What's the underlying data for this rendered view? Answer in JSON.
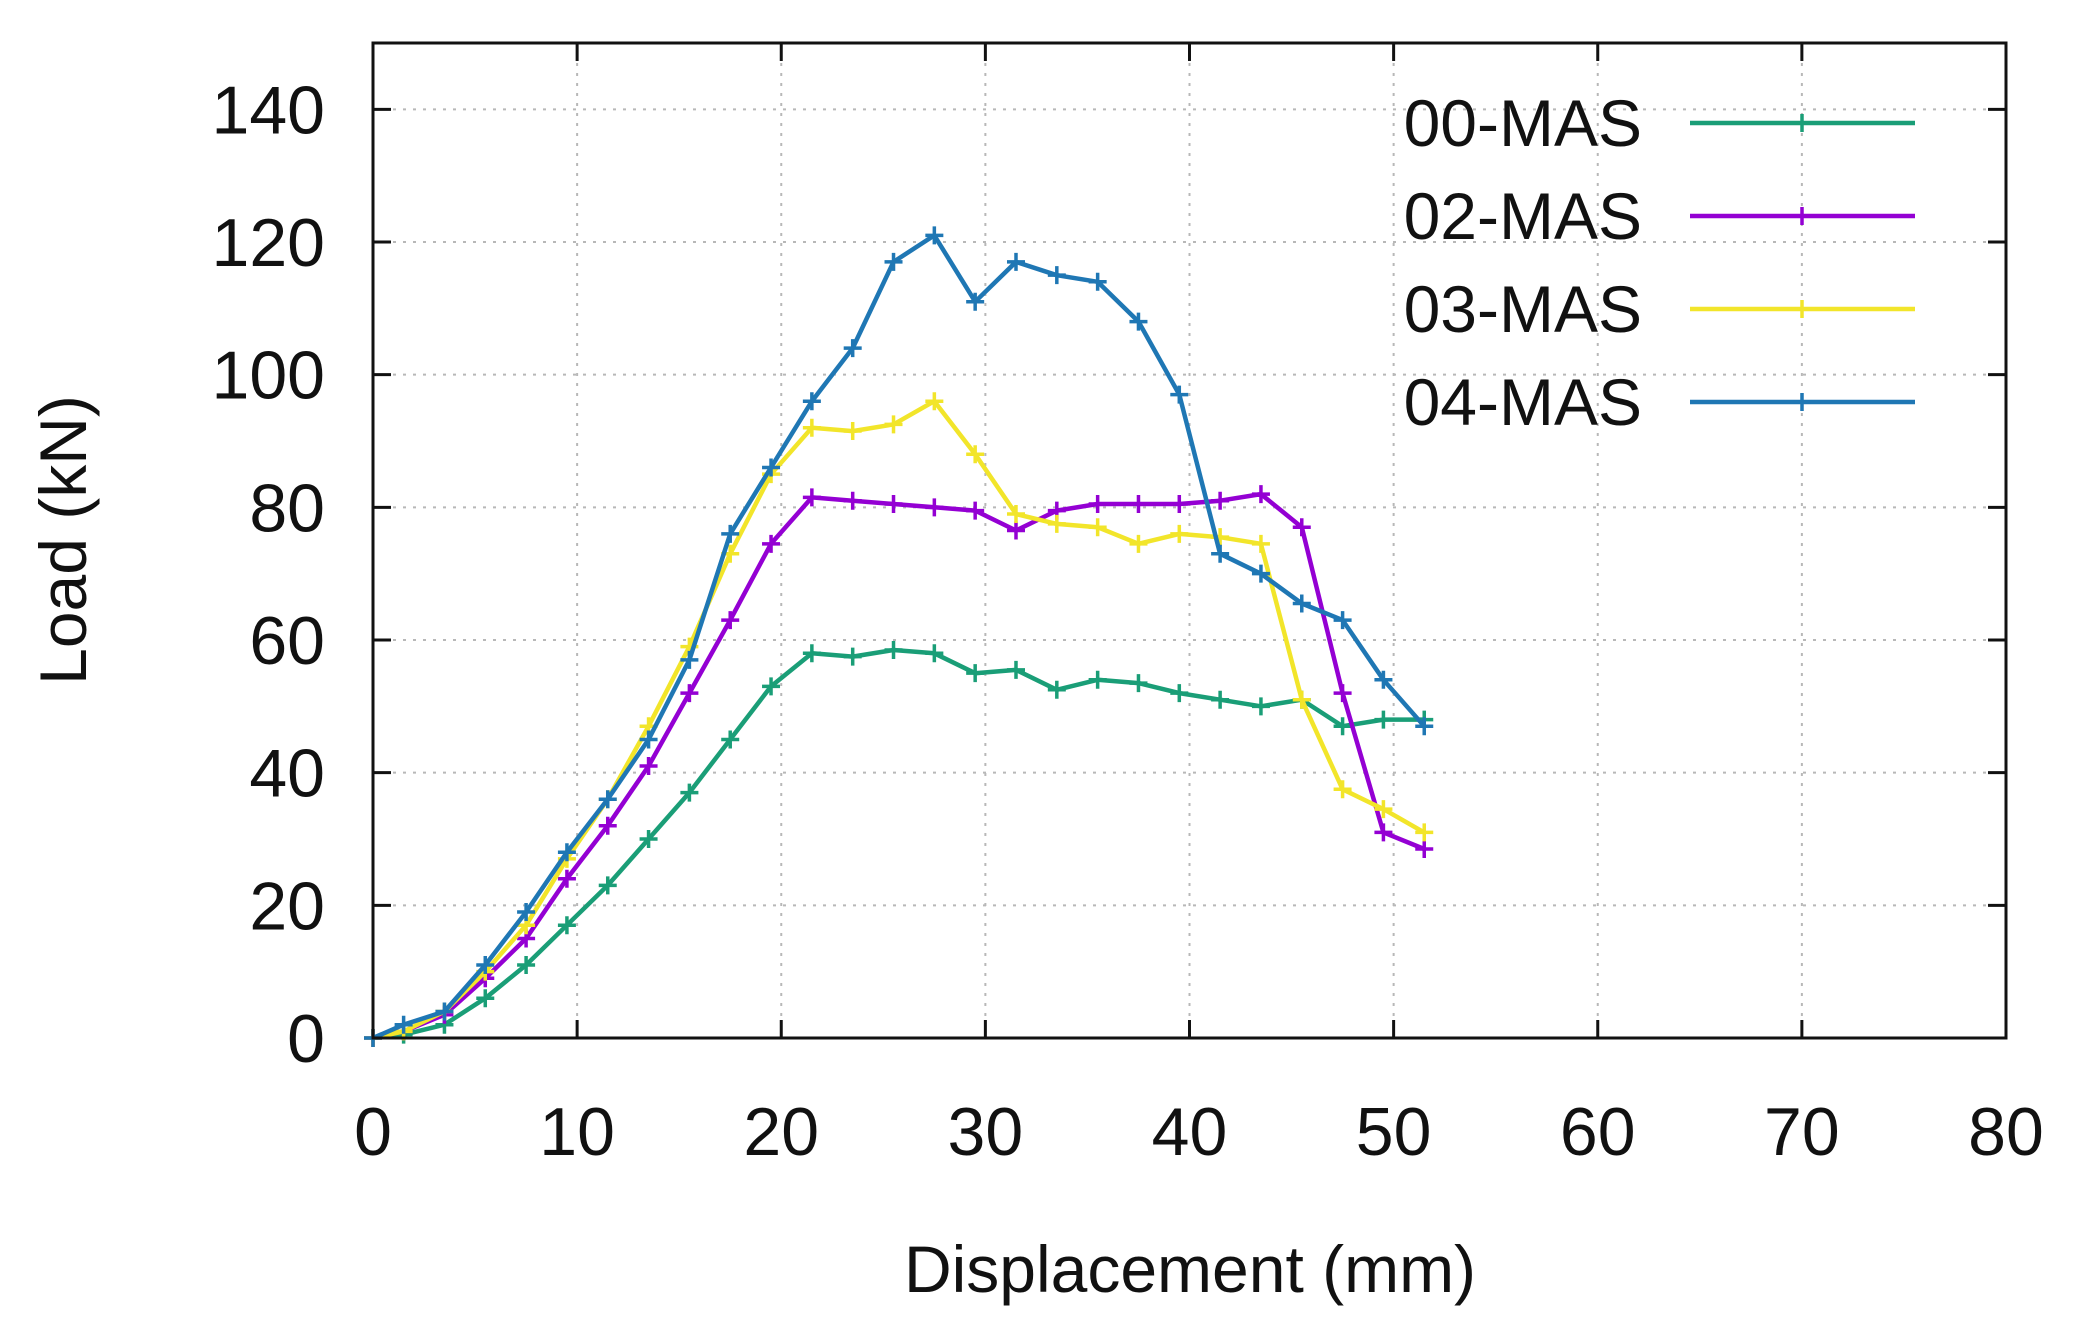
{
  "chart_data": {
    "type": "line",
    "title": "",
    "xlabel": "Displacement (mm)",
    "ylabel": "Load (kN)",
    "xlim": [
      0,
      80
    ],
    "ylim": [
      0,
      150
    ],
    "xticks": [
      0,
      10,
      20,
      30,
      40,
      50,
      60,
      70,
      80
    ],
    "yticks": [
      0,
      20,
      40,
      60,
      80,
      100,
      120,
      140
    ],
    "grid": true,
    "legend_position": "top-right",
    "marker": "plus",
    "series": [
      {
        "name": "00-MAS",
        "color": "#1a9e77",
        "points": [
          [
            0,
            0
          ],
          [
            1.5,
            0.5
          ],
          [
            3.5,
            2
          ],
          [
            5.5,
            6
          ],
          [
            7.5,
            11
          ],
          [
            9.5,
            17
          ],
          [
            11.5,
            23
          ],
          [
            13.5,
            30
          ],
          [
            15.5,
            37
          ],
          [
            17.5,
            45
          ],
          [
            19.5,
            53
          ],
          [
            21.5,
            58
          ],
          [
            23.5,
            57.5
          ],
          [
            25.5,
            58.5
          ],
          [
            27.5,
            58
          ],
          [
            29.5,
            55
          ],
          [
            31.5,
            55.5
          ],
          [
            33.5,
            52.5
          ],
          [
            35.5,
            54
          ],
          [
            37.5,
            53.5
          ],
          [
            39.5,
            52
          ],
          [
            41.5,
            51
          ],
          [
            43.5,
            50
          ],
          [
            45.5,
            51
          ],
          [
            47.5,
            47
          ],
          [
            49.5,
            48
          ],
          [
            51.5,
            48
          ]
        ]
      },
      {
        "name": "02-MAS",
        "color": "#9400d3",
        "points": [
          [
            0,
            0
          ],
          [
            1.5,
            1
          ],
          [
            3.5,
            3.5
          ],
          [
            5.5,
            9
          ],
          [
            7.5,
            15
          ],
          [
            9.5,
            24
          ],
          [
            11.5,
            32
          ],
          [
            13.5,
            41
          ],
          [
            15.5,
            52
          ],
          [
            17.5,
            63
          ],
          [
            19.5,
            74.5
          ],
          [
            21.5,
            81.5
          ],
          [
            23.5,
            81
          ],
          [
            25.5,
            80.5
          ],
          [
            27.5,
            80
          ],
          [
            29.5,
            79.5
          ],
          [
            31.5,
            76.5
          ],
          [
            33.5,
            79.5
          ],
          [
            35.5,
            80.5
          ],
          [
            37.5,
            80.5
          ],
          [
            39.5,
            80.5
          ],
          [
            41.5,
            81
          ],
          [
            43.5,
            82
          ],
          [
            45.5,
            77
          ],
          [
            47.5,
            52
          ],
          [
            49.5,
            31
          ],
          [
            51.5,
            28.5
          ]
        ]
      },
      {
        "name": "03-MAS",
        "color": "#f2e52a",
        "points": [
          [
            0,
            0
          ],
          [
            1.5,
            1
          ],
          [
            3.5,
            4
          ],
          [
            5.5,
            10
          ],
          [
            7.5,
            17
          ],
          [
            9.5,
            27
          ],
          [
            11.5,
            36
          ],
          [
            13.5,
            47
          ],
          [
            15.5,
            59
          ],
          [
            17.5,
            73
          ],
          [
            19.5,
            85
          ],
          [
            21.5,
            92
          ],
          [
            23.5,
            91.5
          ],
          [
            25.5,
            92.5
          ],
          [
            27.5,
            96
          ],
          [
            29.5,
            88
          ],
          [
            31.5,
            79
          ],
          [
            33.5,
            77.5
          ],
          [
            35.5,
            77
          ],
          [
            37.5,
            74.5
          ],
          [
            39.5,
            76
          ],
          [
            41.5,
            75.5
          ],
          [
            43.5,
            74.5
          ],
          [
            45.5,
            51
          ],
          [
            47.5,
            37.5
          ],
          [
            49.5,
            34.5
          ],
          [
            51.5,
            31
          ]
        ]
      },
      {
        "name": "04-MAS",
        "color": "#1f77b4",
        "points": [
          [
            0,
            0
          ],
          [
            1.5,
            2
          ],
          [
            3.5,
            4
          ],
          [
            5.5,
            11
          ],
          [
            7.5,
            19
          ],
          [
            9.5,
            28
          ],
          [
            11.5,
            36
          ],
          [
            13.5,
            45
          ],
          [
            15.5,
            57
          ],
          [
            17.5,
            76
          ],
          [
            19.5,
            86
          ],
          [
            21.5,
            96
          ],
          [
            23.5,
            104
          ],
          [
            25.5,
            117
          ],
          [
            27.5,
            121
          ],
          [
            29.5,
            111
          ],
          [
            31.5,
            117
          ],
          [
            33.5,
            115
          ],
          [
            35.5,
            114
          ],
          [
            37.5,
            108
          ],
          [
            39.5,
            97
          ],
          [
            41.5,
            73
          ],
          [
            43.5,
            70
          ],
          [
            45.5,
            65.5
          ],
          [
            47.5,
            63
          ],
          [
            49.5,
            54
          ],
          [
            51.5,
            47
          ]
        ]
      }
    ]
  }
}
